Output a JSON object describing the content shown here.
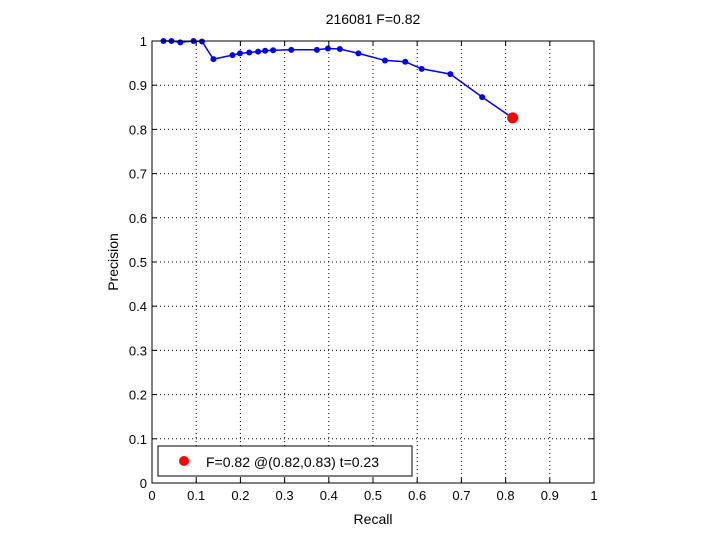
{
  "chart_data": {
    "type": "line",
    "title": "216081 F=0.82",
    "xlabel": "Recall",
    "ylabel": "Precision",
    "xlim": [
      0,
      1
    ],
    "ylim": [
      0,
      1
    ],
    "xticks": [
      0,
      0.1,
      0.2,
      0.3,
      0.4,
      0.5,
      0.6,
      0.7,
      0.8,
      0.9,
      1
    ],
    "yticks": [
      0,
      0.1,
      0.2,
      0.3,
      0.4,
      0.5,
      0.6,
      0.7,
      0.8,
      0.9,
      1
    ],
    "xtick_labels": [
      "0",
      "0.1",
      "0.2",
      "0.3",
      "0.4",
      "0.5",
      "0.6",
      "0.7",
      "0.8",
      "0.9",
      "1"
    ],
    "ytick_labels": [
      "0",
      "0.1",
      "0.2",
      "0.3",
      "0.4",
      "0.5",
      "0.6",
      "0.7",
      "0.8",
      "0.9",
      "1"
    ],
    "grid": true,
    "legend_position": "bottom-left",
    "series": [
      {
        "color": "#0000ff",
        "marker": "dot",
        "x": [
          0.026,
          0.044,
          0.064,
          0.094,
          0.113,
          0.139,
          0.182,
          0.199,
          0.22,
          0.24,
          0.256,
          0.274,
          0.315,
          0.373,
          0.398,
          0.425,
          0.467,
          0.527,
          0.573,
          0.61,
          0.675,
          0.747
        ],
        "y": [
          1.0,
          1.0,
          0.997,
          1.0,
          0.999,
          0.959,
          0.968,
          0.972,
          0.974,
          0.976,
          0.978,
          0.979,
          0.98,
          0.98,
          0.983,
          0.982,
          0.972,
          0.956,
          0.953,
          0.937,
          0.925,
          0.873
        ]
      }
    ],
    "best_point": {
      "color": "#ff0000",
      "x": 0.816,
      "y": 0.826,
      "legend_label": "F=0.82 @(0.82,0.83) t=0.23"
    }
  }
}
